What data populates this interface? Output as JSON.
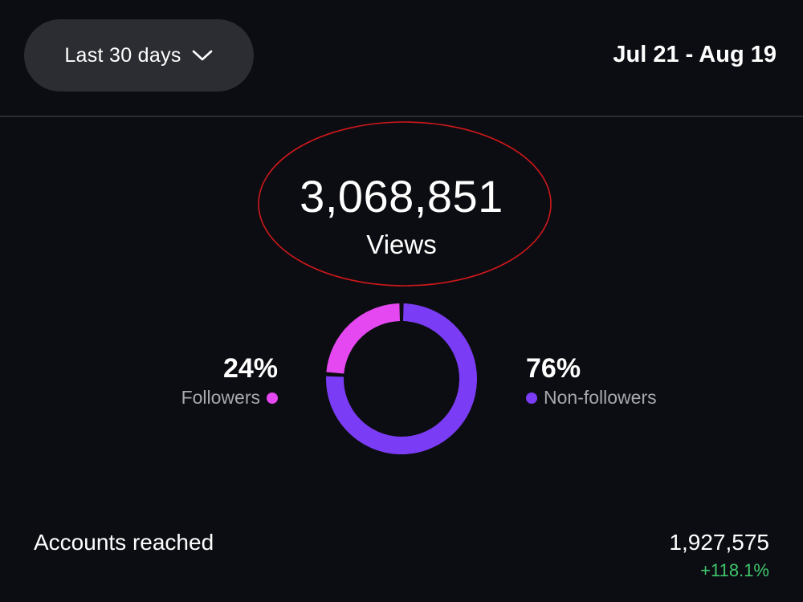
{
  "header": {
    "range_selector": {
      "label": "Last 30 days",
      "icon": "chevron-down-icon"
    },
    "date_range": "Jul 21 - Aug 19"
  },
  "views": {
    "value": "3,068,851",
    "label": "Views",
    "annotation_color": "#d0181b"
  },
  "breakdown": {
    "followers": {
      "percent_text": "24%",
      "label": "Followers",
      "percent": 24,
      "color": "#e548f0"
    },
    "non_followers": {
      "percent_text": "76%",
      "label": "Non-followers",
      "percent": 76,
      "color": "#7b3cf5"
    }
  },
  "accounts_reached": {
    "label": "Accounts reached",
    "value": "1,927,575",
    "change": "+118.1%",
    "change_color": "#3ec56b"
  }
}
